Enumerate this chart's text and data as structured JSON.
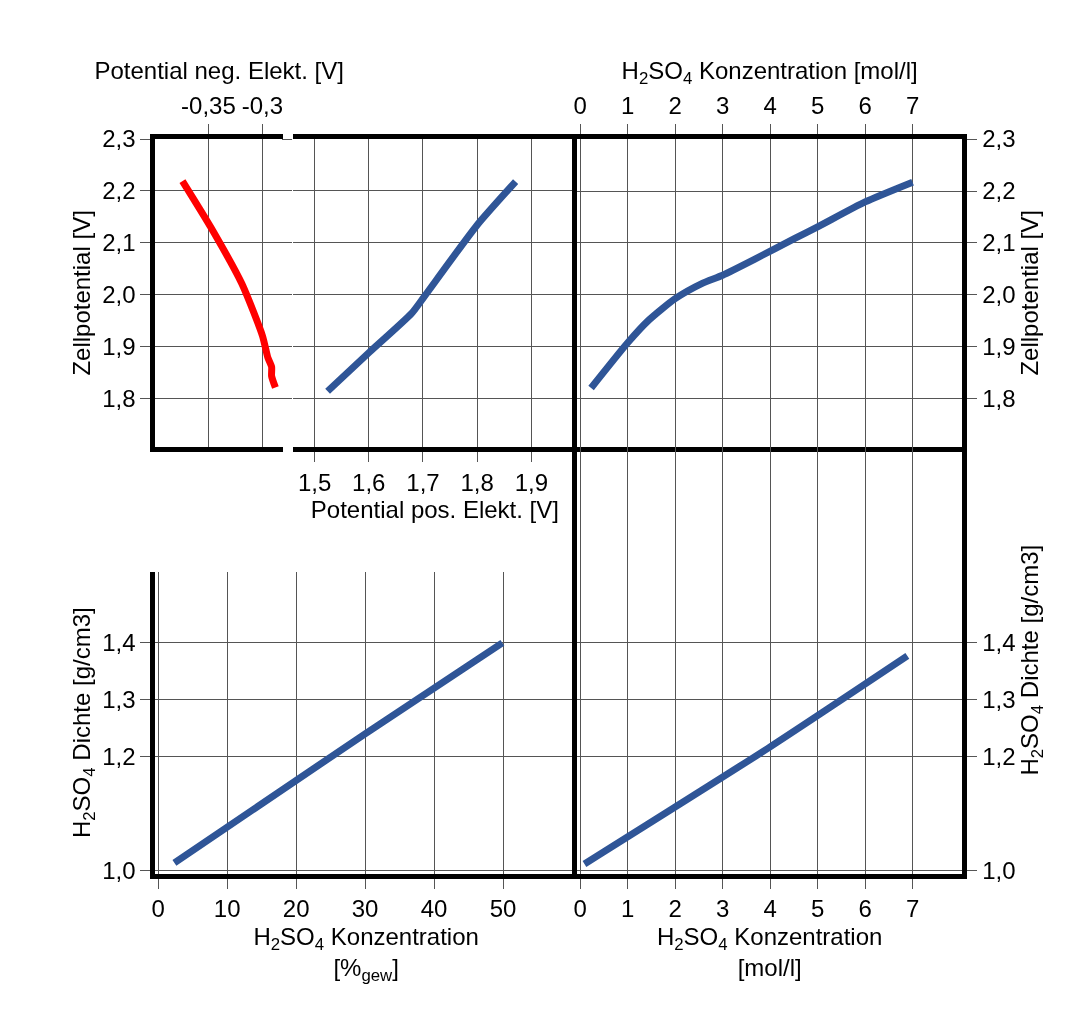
{
  "chart_data": [
    {
      "type": "line",
      "xlabel": "Potential neg. Elekt. [V]",
      "ylabel": "Zellpotential [V]",
      "xlim": [
        -0.399,
        -0.281
      ],
      "ylim": [
        1.707,
        2.3
      ],
      "xticks": [
        {
          "value": -0.35,
          "label": "-0,35"
        },
        {
          "value": -0.3,
          "label": "-0,3"
        }
      ],
      "yticks": [
        {
          "value": 1.8,
          "label": "1,8"
        },
        {
          "value": 1.9,
          "label": "1,9"
        },
        {
          "value": 2.0,
          "label": "2,0"
        },
        {
          "value": 2.1,
          "label": "2,1"
        },
        {
          "value": 2.2,
          "label": "2,2"
        },
        {
          "value": 2.3,
          "label": "2,3"
        }
      ],
      "grid": true,
      "series": [
        {
          "color": "#ff0000",
          "x": [
            -0.374,
            -0.3475,
            -0.319,
            -0.3,
            -0.295,
            -0.2915,
            -0.2915,
            -0.288
          ],
          "values": [
            2.219,
            2.129,
            2.021,
            1.921,
            1.879,
            1.861,
            1.843,
            1.821
          ]
        }
      ]
    },
    {
      "type": "line",
      "xlabel": "Potential pos. Elekt. [V]",
      "xlim": [
        1.46,
        1.984
      ],
      "ylim": [
        1.707,
        2.3
      ],
      "xticks": [
        {
          "value": 1.5,
          "label": "1,5"
        },
        {
          "value": 1.6,
          "label": "1,6"
        },
        {
          "value": 1.7,
          "label": "1,7"
        },
        {
          "value": 1.8,
          "label": "1,8"
        },
        {
          "value": 1.9,
          "label": "1,9"
        }
      ],
      "yticks": [
        1.8,
        1.9,
        2.0,
        2.1,
        2.2,
        2.3
      ],
      "tick_labels": "x",
      "grid": true,
      "series": [
        {
          "color": "#2f5597",
          "x": [
            1.524,
            1.601,
            1.679,
            1.7,
            1.799,
            1.871
          ],
          "values": [
            1.814,
            1.889,
            1.964,
            1.993,
            2.133,
            2.218
          ]
        }
      ]
    },
    {
      "type": "line",
      "xlabel": "H$_{2}$SO$_{4}$ Konzentration [mol/l]",
      "ylabel": "Zellpotential [V]",
      "xlim": [
        -0.07,
        8.05
      ],
      "ylim": [
        1.708,
        2.3
      ],
      "xticks": [
        0,
        1,
        2,
        3,
        4,
        5,
        6,
        7
      ],
      "yticks": [
        {
          "value": 1.8,
          "label": "1,8"
        },
        {
          "value": 1.9,
          "label": "1,9"
        },
        {
          "value": 2.0,
          "label": "2,0"
        },
        {
          "value": 2.1,
          "label": "2,1"
        },
        {
          "value": 2.2,
          "label": "2,2"
        },
        {
          "value": 2.3,
          "label": "2,3"
        }
      ],
      "grid": true,
      "series": [
        {
          "color": "#2f5597",
          "x": [
            0.23,
            1.0,
            1.45,
            2.0,
            2.56,
            3.0,
            3.68,
            4.52,
            5.0,
            6.0,
            7.0
          ],
          "values": [
            1.821,
            1.908,
            1.952,
            1.993,
            2.022,
            2.038,
            2.069,
            2.109,
            2.131,
            2.179,
            2.217
          ]
        }
      ]
    },
    {
      "type": "line",
      "xlabel": "H$_{2}$SO$_{4}$ Konzentration [%$_{gew}$]",
      "ylabel": "H$_{2}$SO$_{4}$ Dichte [g/cm3]",
      "xlim": [
        -0.4,
        60.7
      ],
      "ylim": [
        0.994,
        1.525
      ],
      "xticks": [
        0,
        10,
        20,
        30,
        40,
        50
      ],
      "yticks": [
        {
          "value": 1.0,
          "label": "1,0"
        },
        {
          "value": 1.2,
          "label": "1,2"
        },
        {
          "value": 1.3,
          "label": "1,3"
        },
        {
          "value": 1.4,
          "label": "1,4"
        }
      ],
      "grid": true,
      "series": [
        {
          "color": "#2f5597",
          "x": [
            2.35,
            30,
            49.9
          ],
          "values": [
            1.013,
            1.24,
            1.4
          ]
        }
      ]
    },
    {
      "type": "line",
      "xlabel": "H$_{2}$SO$_{4}$ Konzentration [mol/l]",
      "ylabel": "H$_{2}$SO$_{4}$ Dichte [g/cm3]",
      "xlim": [
        -0.07,
        8.05
      ],
      "ylim": [
        0.994,
        1.745
      ],
      "xticks": [
        0,
        1,
        2,
        3,
        4,
        5,
        6,
        7
      ],
      "yticks": [
        {
          "value": 1.0,
          "label": "1,0"
        },
        {
          "value": 1.2,
          "label": "1,2"
        },
        {
          "value": 1.3,
          "label": "1,3"
        },
        {
          "value": 1.4,
          "label": "1,4"
        }
      ],
      "grid": true,
      "series": [
        {
          "color": "#2f5597",
          "x": [
            0.09,
            4.0,
            6.89
          ],
          "values": [
            1.011,
            1.217,
            1.377
          ]
        }
      ]
    }
  ]
}
